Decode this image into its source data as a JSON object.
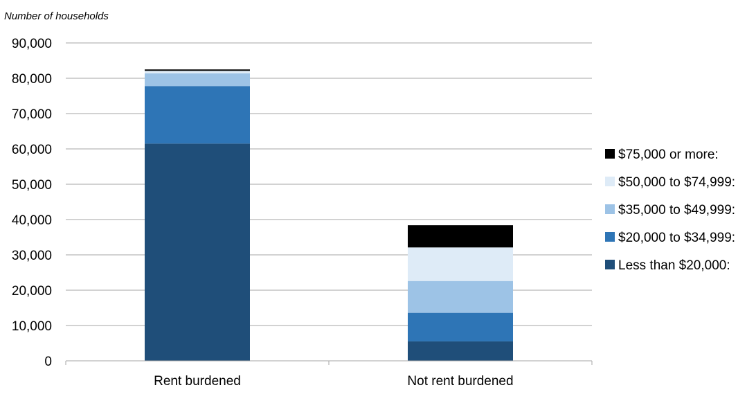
{
  "chart_data": {
    "type": "bar",
    "stacked": true,
    "ylabel": "Number of households",
    "ylim": [
      0,
      90000
    ],
    "yticks": [
      0,
      10000,
      20000,
      30000,
      40000,
      50000,
      60000,
      70000,
      80000,
      90000
    ],
    "ytick_labels": [
      "0",
      "10,000",
      "20,000",
      "30,000",
      "40,000",
      "50,000",
      "60,000",
      "70,000",
      "80,000",
      "90,000"
    ],
    "grid": true,
    "legend_position": "right",
    "categories": [
      "Rent burdened",
      "Not rent burdened"
    ],
    "series": [
      {
        "name": "Less than $20,000:",
        "color": "#1f4e79",
        "values": [
          61500,
          5500
        ]
      },
      {
        "name": "$20,000 to $34,999:",
        "color": "#2e75b6",
        "values": [
          16300,
          8100
        ]
      },
      {
        "name": "$35,000 to $49,999:",
        "color": "#9dc3e6",
        "values": [
          3600,
          9000
        ]
      },
      {
        "name": "$50,000 to $74,999:",
        "color": "#deebf7",
        "values": [
          700,
          9500
        ]
      },
      {
        "name": "$75,000 or more:",
        "color": "#000000",
        "values": [
          400,
          6300
        ]
      }
    ]
  }
}
